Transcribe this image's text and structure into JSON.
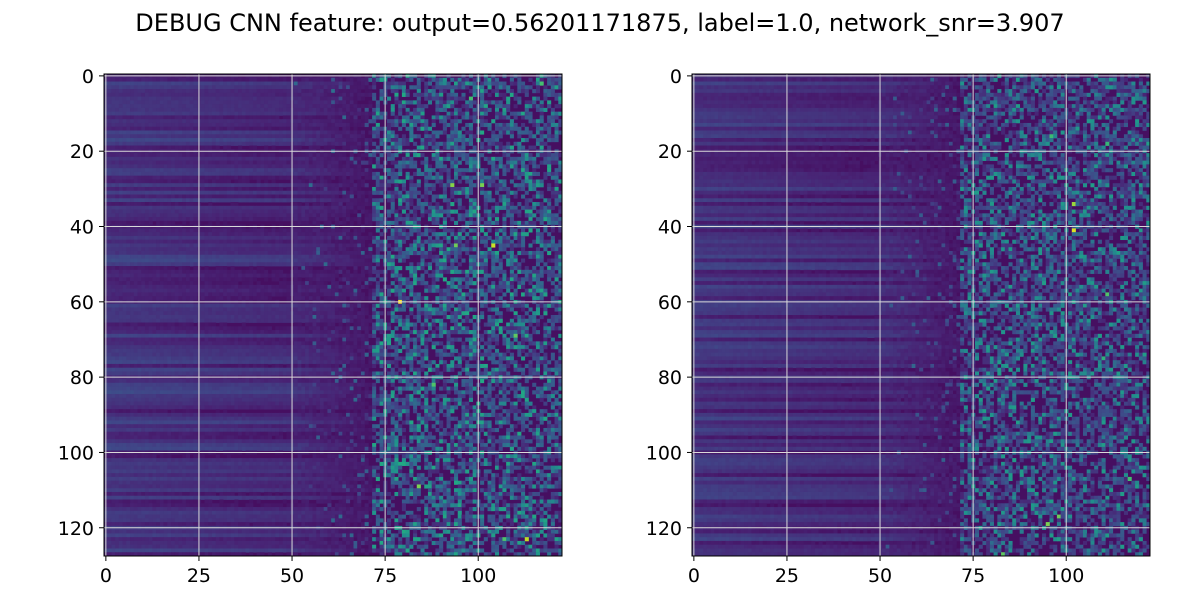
{
  "figure": {
    "title": "DEBUG CNN feature: output=0.56201171875, label=1.0, network_snr=3.907"
  },
  "colormap": {
    "name": "viridis",
    "stops": [
      "#440154",
      "#482475",
      "#414487",
      "#355f8d",
      "#2a788e",
      "#21918c",
      "#22a884",
      "#44bf70",
      "#7ad151",
      "#bddf26",
      "#fde725"
    ]
  },
  "grid_color": "#d9d9d9",
  "chart_data": [
    {
      "type": "heatmap",
      "name": "left-heatmap",
      "n_cols": 123,
      "n_rows": 128,
      "xlim": [
        -0.5,
        122.5
      ],
      "ylim": [
        127.5,
        -0.5
      ],
      "x_ticks": [
        0,
        25,
        50,
        75,
        100
      ],
      "y_ticks": [
        0,
        20,
        40,
        60,
        80,
        100,
        120
      ],
      "grid": true,
      "hot_spots": [
        {
          "x": 79,
          "y": 60,
          "value": 1.0
        },
        {
          "x": 104,
          "y": 45,
          "value": 0.92
        },
        {
          "x": 113,
          "y": 123,
          "value": 0.9
        },
        {
          "x": 93,
          "y": 29,
          "value": 0.82
        },
        {
          "x": 101,
          "y": 29,
          "value": 0.8
        },
        {
          "x": 94,
          "y": 45,
          "value": 0.78
        },
        {
          "x": 84,
          "y": 109,
          "value": 0.8
        },
        {
          "x": 110,
          "y": 69,
          "value": 0.75
        },
        {
          "x": 88,
          "y": 82,
          "value": 0.72
        },
        {
          "x": 98,
          "y": 6,
          "value": 0.7
        },
        {
          "x": 117,
          "y": 2,
          "value": 0.7
        },
        {
          "x": 107,
          "y": 123,
          "value": 0.72
        }
      ]
    },
    {
      "type": "heatmap",
      "name": "right-heatmap",
      "n_cols": 123,
      "n_rows": 128,
      "xlim": [
        -0.5,
        122.5
      ],
      "ylim": [
        127.5,
        -0.5
      ],
      "x_ticks": [
        0,
        25,
        50,
        75,
        100
      ],
      "y_ticks": [
        0,
        20,
        40,
        60,
        80,
        100,
        120
      ],
      "grid": true,
      "hot_spots": [
        {
          "x": 102,
          "y": 41,
          "value": 0.95
        },
        {
          "x": 102,
          "y": 34,
          "value": 0.85
        },
        {
          "x": 95,
          "y": 119,
          "value": 0.8
        },
        {
          "x": 98,
          "y": 117,
          "value": 0.78
        },
        {
          "x": 83,
          "y": 127,
          "value": 0.75
        },
        {
          "x": 111,
          "y": 58,
          "value": 0.72
        },
        {
          "x": 117,
          "y": 107,
          "value": 0.7
        },
        {
          "x": 96,
          "y": 16,
          "value": 0.68
        },
        {
          "x": 111,
          "y": 18,
          "value": 0.66
        },
        {
          "x": 110,
          "y": 75,
          "value": 0.64
        }
      ]
    }
  ]
}
